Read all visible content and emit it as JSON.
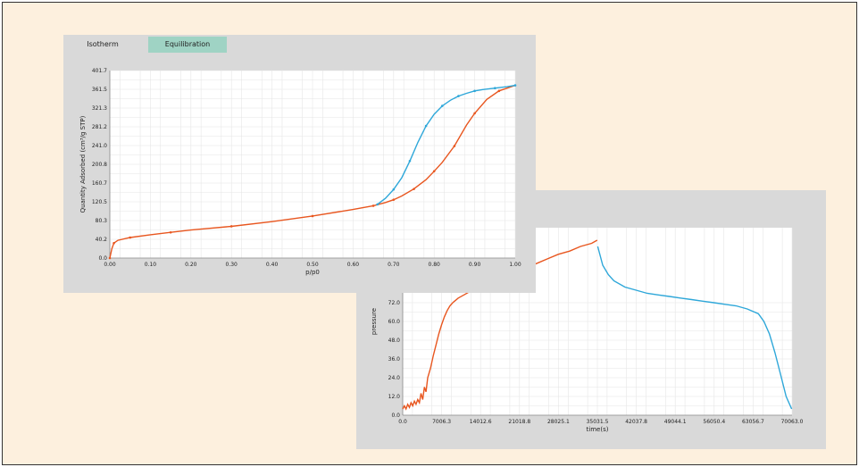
{
  "tabs": [
    {
      "label": "Isotherm",
      "active": false
    },
    {
      "label": "Equilibration",
      "active": true
    }
  ],
  "colors": {
    "background": "#fdf0de",
    "panel": "#d9d9d9",
    "tab_active": "#9fd3c4",
    "adsorption": "#e8561f",
    "desorption": "#2ea7d9"
  },
  "chart_data": [
    {
      "type": "line",
      "xlabel": "p/p0",
      "ylabel": "Quantity Adsorbed (cm³/g STP)",
      "xlim": [
        0,
        1
      ],
      "ylim": [
        0,
        401.7
      ],
      "x_ticks": [
        "0.00",
        "0.10",
        "0.20",
        "0.30",
        "0.40",
        "0.50",
        "0.60",
        "0.70",
        "0.80",
        "0.90",
        "1.00"
      ],
      "y_ticks": [
        "0.0",
        "40.2",
        "80.3",
        "120.5",
        "160.7",
        "200.8",
        "241.0",
        "281.2",
        "321.3",
        "361.5",
        "401.7"
      ],
      "grid": true,
      "series": [
        {
          "color": "#e8561f",
          "x": [
            0.0,
            0.005,
            0.01,
            0.02,
            0.05,
            0.1,
            0.15,
            0.2,
            0.3,
            0.4,
            0.5,
            0.6,
            0.65,
            0.68,
            0.7,
            0.72,
            0.75,
            0.78,
            0.8,
            0.82,
            0.85,
            0.88,
            0.9,
            0.93,
            0.96,
            1.0
          ],
          "y": [
            0,
            20,
            32,
            38,
            44,
            50,
            55,
            60,
            68,
            78,
            90,
            104,
            112,
            119,
            125,
            133,
            148,
            168,
            186,
            205,
            240,
            285,
            310,
            340,
            358,
            370
          ]
        },
        {
          "color": "#2ea7d9",
          "x": [
            0.66,
            0.68,
            0.7,
            0.72,
            0.74,
            0.76,
            0.78,
            0.8,
            0.82,
            0.84,
            0.86,
            0.88,
            0.9,
            0.92,
            0.95,
            0.98,
            1.0
          ],
          "y": [
            115,
            128,
            147,
            172,
            208,
            248,
            283,
            308,
            326,
            338,
            347,
            353,
            358,
            361,
            364,
            367,
            370
          ]
        }
      ]
    },
    {
      "type": "line",
      "xlabel": "time(s)",
      "ylabel": "pressure",
      "xlim": [
        0,
        70063.0
      ],
      "ylim": [
        0,
        120
      ],
      "x_ticks": [
        "0.0",
        "7006.3",
        "14012.6",
        "21018.8",
        "28025.1",
        "35031.5",
        "42037.8",
        "49044.1",
        "56050.4",
        "63056.7",
        "70063.0"
      ],
      "y_ticks": [
        "0.0",
        "12.0",
        "24.0",
        "36.0",
        "48.0",
        "60.0",
        "72.0"
      ],
      "grid": true,
      "series": [
        {
          "color": "#e8561f",
          "x": [
            0,
            300,
            600,
            900,
            1200,
            1500,
            1800,
            2100,
            2400,
            2700,
            3000,
            3300,
            3600,
            3900,
            4200,
            4500,
            5000,
            5500,
            6000,
            6500,
            7000,
            7500,
            8000,
            8500,
            9000,
            10000,
            11000,
            12000,
            13000,
            14000,
            16000,
            18000,
            20000,
            22000,
            24000,
            26000,
            28000,
            30000,
            32000,
            34000,
            35000
          ],
          "y": [
            4,
            6,
            4,
            7,
            5,
            8,
            6,
            9,
            7,
            10,
            8,
            14,
            10,
            18,
            15,
            24,
            30,
            38,
            45,
            52,
            58,
            63,
            67,
            70,
            72,
            75,
            77,
            79,
            80,
            82,
            85,
            88,
            91,
            94,
            97,
            100,
            103,
            105,
            108,
            110,
            112
          ]
        },
        {
          "color": "#2ea7d9",
          "x": [
            35100,
            36000,
            37000,
            38000,
            40000,
            42000,
            44000,
            46000,
            48000,
            50000,
            52000,
            54000,
            56000,
            58000,
            60000,
            62000,
            64000,
            65000,
            66000,
            67000,
            68000,
            69000,
            70000
          ],
          "y": [
            108,
            96,
            90,
            86,
            82,
            80,
            78,
            77,
            76,
            75,
            74,
            73,
            72,
            71,
            70,
            68,
            65,
            60,
            52,
            40,
            26,
            12,
            4
          ]
        }
      ]
    }
  ]
}
